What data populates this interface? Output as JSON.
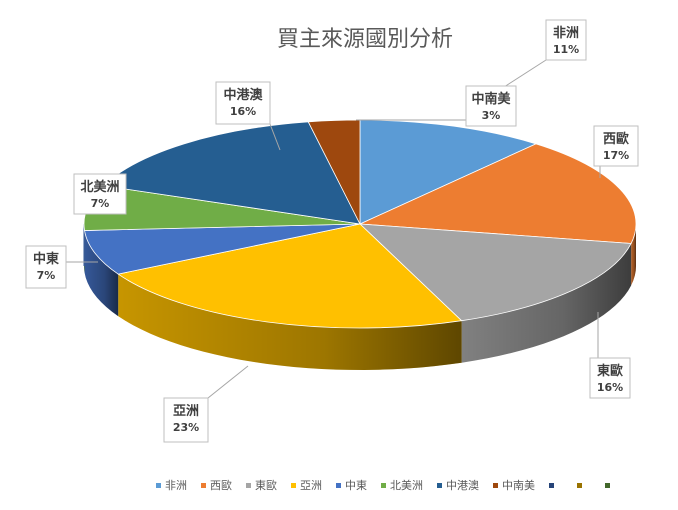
{
  "chart_data": {
    "type": "pie",
    "title": "買主來源國別分析",
    "slices": [
      {
        "name": "非洲",
        "value": 11,
        "label": "11%",
        "color": "#5b9bd5"
      },
      {
        "name": "西歐",
        "value": 17,
        "label": "17%",
        "color": "#ed7d31"
      },
      {
        "name": "東歐",
        "value": 16,
        "label": "16%",
        "color": "#a5a5a5"
      },
      {
        "name": "亞洲",
        "value": 23,
        "label": "23%",
        "color": "#ffc000"
      },
      {
        "name": "中東",
        "value": 7,
        "label": "7%",
        "color": "#4472c4"
      },
      {
        "name": "北美洲",
        "value": 7,
        "label": "7%",
        "color": "#70ad47"
      },
      {
        "name": "中港澳",
        "value": 16,
        "label": "16%",
        "color": "#255e91"
      },
      {
        "name": "中南美",
        "value": 3,
        "label": "3%",
        "color": "#9e480e"
      }
    ],
    "legend": {
      "position": "bottom",
      "entries": [
        "非洲",
        "西歐",
        "東歐",
        "亞洲",
        "中東",
        "北美洲",
        "中港澳",
        "中南美"
      ],
      "extra_marker_colors": [
        "#264478",
        "#997300",
        "#43682b"
      ]
    }
  }
}
